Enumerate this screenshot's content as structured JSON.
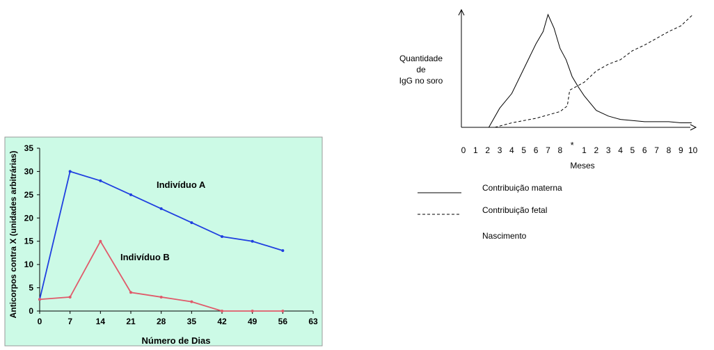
{
  "chart_data": [
    {
      "type": "line",
      "ylabel": "Anticorpos contra X (unidades arbitrárias)",
      "xlabel": "Número de Dias",
      "x": [
        0,
        7,
        14,
        21,
        28,
        35,
        42,
        49,
        56
      ],
      "xticks": [
        0,
        7,
        14,
        21,
        28,
        35,
        42,
        49,
        56,
        63
      ],
      "yticks": [
        0,
        5,
        10,
        15,
        20,
        25,
        30,
        35
      ],
      "xlim": [
        0,
        63
      ],
      "ylim": [
        0,
        35
      ],
      "grid": false,
      "colors": {
        "background": "#ccfae6",
        "axis": "#000000"
      },
      "series": [
        {
          "name": "Indivíduo A",
          "color": "#1f3fe0",
          "values": [
            2.5,
            30,
            28,
            25,
            22,
            19,
            16,
            15,
            13
          ]
        },
        {
          "name": "Indivíduo B",
          "color": "#e05a6a",
          "values": [
            2.5,
            3,
            15,
            4,
            3,
            2,
            0,
            0,
            0
          ]
        }
      ]
    },
    {
      "type": "line",
      "ylabel_lines": [
        "Quantidade",
        "de",
        "IgG no soro"
      ],
      "xlabel": "Meses",
      "xticks": [
        "0",
        "1",
        "2",
        "3",
        "4",
        "5",
        "6",
        "7",
        "8",
        "*",
        "1",
        "2",
        "3",
        "4",
        "5",
        "6",
        "7",
        "8",
        "9",
        "10"
      ],
      "x_units": "position index along month axis (0–19)",
      "grid": false,
      "legend": [
        {
          "label": "Contribuição materna",
          "style": "solid"
        },
        {
          "label": "Contribuição fetal",
          "style": "dashed"
        },
        {
          "label": "Nascimento",
          "style": "asterisk"
        }
      ],
      "series": [
        {
          "name": "Contribuição materna",
          "style": "solid",
          "points": [
            [
              2.1,
              0.0
            ],
            [
              3.0,
              0.17
            ],
            [
              4.0,
              0.3
            ],
            [
              5.0,
              0.52
            ],
            [
              6.0,
              0.74
            ],
            [
              6.6,
              0.85
            ],
            [
              7.0,
              1.0
            ],
            [
              7.5,
              0.88
            ],
            [
              8.0,
              0.7
            ],
            [
              8.5,
              0.6
            ],
            [
              9.0,
              0.45
            ],
            [
              9.5,
              0.36
            ],
            [
              10.0,
              0.28
            ],
            [
              11.0,
              0.15
            ],
            [
              12.0,
              0.1
            ],
            [
              13.0,
              0.07
            ],
            [
              14.0,
              0.06
            ],
            [
              15.0,
              0.05
            ],
            [
              16.0,
              0.05
            ],
            [
              17.0,
              0.05
            ],
            [
              18.0,
              0.04
            ],
            [
              18.9,
              0.04
            ]
          ]
        },
        {
          "name": "Contribuição fetal",
          "style": "dashed",
          "points": [
            [
              2.6,
              0.0
            ],
            [
              4.0,
              0.04
            ],
            [
              5.0,
              0.06
            ],
            [
              6.0,
              0.08
            ],
            [
              7.0,
              0.11
            ],
            [
              8.0,
              0.14
            ],
            [
              8.6,
              0.19
            ],
            [
              8.8,
              0.33
            ],
            [
              10.0,
              0.4
            ],
            [
              11.0,
              0.5
            ],
            [
              12.0,
              0.56
            ],
            [
              13.0,
              0.6
            ],
            [
              14.0,
              0.68
            ],
            [
              15.0,
              0.73
            ],
            [
              16.0,
              0.79
            ],
            [
              17.0,
              0.85
            ],
            [
              18.0,
              0.9
            ],
            [
              19.0,
              1.0
            ]
          ]
        }
      ]
    }
  ]
}
